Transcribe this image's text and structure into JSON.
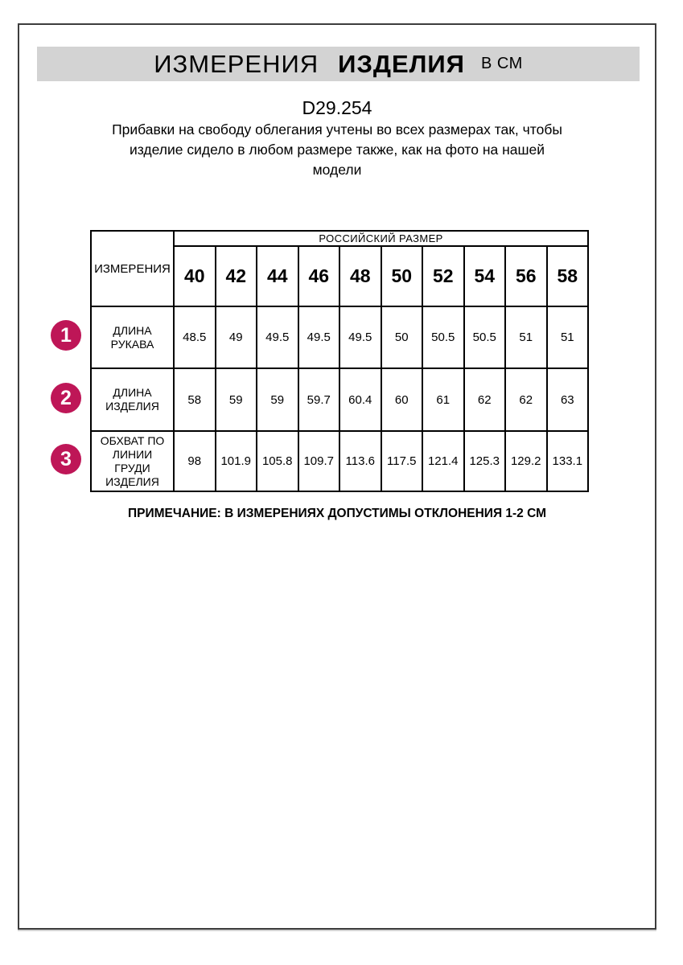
{
  "header": {
    "title_word1": "ИЗМЕРЕНИЯ",
    "title_word2": "ИЗДЕЛИЯ",
    "title_unit": "В СМ",
    "article": "D29.254",
    "description_lines": [
      "Прибавки на свободу облегания учтены во всех размерах так, чтобы",
      "изделие сидело в любом размере также, как на фото на нашей",
      "модели"
    ]
  },
  "table": {
    "corner_label": "ИЗМЕРЕНИЯ",
    "size_header": "РОССИЙСКИЙ РАЗМЕР",
    "sizes": [
      "40",
      "42",
      "44",
      "46",
      "48",
      "50",
      "52",
      "54",
      "56",
      "58"
    ],
    "rows": [
      {
        "num": "1",
        "label": "ДЛИНА РУКАВА",
        "values": [
          "48.5",
          "49",
          "49.5",
          "49.5",
          "49.5",
          "50",
          "50.5",
          "50.5",
          "51",
          "51"
        ]
      },
      {
        "num": "2",
        "label": "ДЛИНА ИЗДЕЛИЯ",
        "values": [
          "58",
          "59",
          "59",
          "59.7",
          "60.4",
          "60",
          "61",
          "62",
          "62",
          "63"
        ]
      },
      {
        "num": "3",
        "label": "ОБХВАТ ПО ЛИНИИ ГРУДИ ИЗДЕЛИЯ",
        "values": [
          "98",
          "101.9",
          "105.8",
          "109.7",
          "113.6",
          "117.5",
          "121.4",
          "125.3",
          "129.2",
          "133.1"
        ]
      }
    ]
  },
  "footer": {
    "note": "ПРИМЕЧАНИЕ: В ИЗМЕРЕНИЯХ ДОПУСТИМЫ ОТКЛОНЕНИЯ 1-2 СМ"
  },
  "colors": {
    "accent_circle": "#be1657",
    "banner_background": "#d3d3d3",
    "frame_border": "#3d3d3d",
    "table_border": "#000000"
  }
}
